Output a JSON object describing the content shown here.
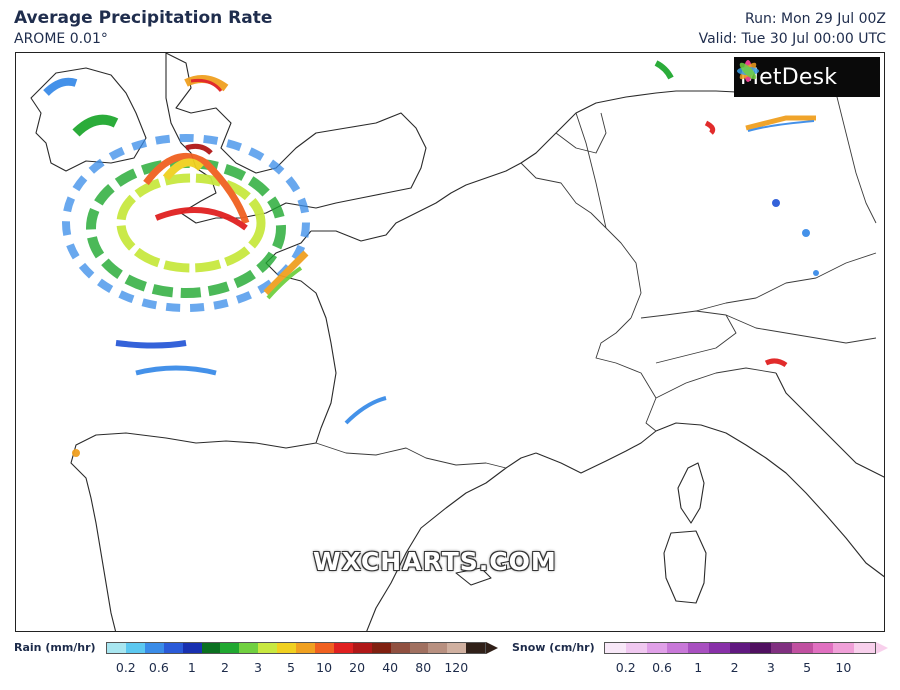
{
  "header": {
    "title": "Average Precipitation Rate",
    "model": "AROME 0.01°",
    "run": "Run: Mon 29 Jul 00Z",
    "valid": "Valid: Tue 30 Jul 00:00 UTC"
  },
  "logo": {
    "text": "MetDesk",
    "icon": "metdesk-flower-icon"
  },
  "watermark": "WXCHARTS.COM",
  "legend": {
    "rain": {
      "label": "Rain (mm/hr)",
      "ticks": [
        "0.2",
        "0.6",
        "1",
        "2",
        "3",
        "5",
        "10",
        "20",
        "40",
        "80",
        "120"
      ],
      "colors": [
        "#a8e6f0",
        "#5cc8f0",
        "#3a8ce8",
        "#2a5ad8",
        "#1830b0",
        "#0a7020",
        "#20a830",
        "#70d040",
        "#c8e840",
        "#f0d020",
        "#f0a020",
        "#f06020",
        "#e02020",
        "#b01818",
        "#802010",
        "#905040",
        "#a07060",
        "#b89080",
        "#d0b0a0",
        "#302018"
      ]
    },
    "snow": {
      "label": "Snow (cm/hr)",
      "ticks": [
        "0.2",
        "0.6",
        "1",
        "2",
        "3",
        "5",
        "10"
      ],
      "colors": [
        "#f8e8f8",
        "#f0c8f0",
        "#e0a0e8",
        "#c878d8",
        "#a850c0",
        "#8830a8",
        "#601880",
        "#501060",
        "#803080",
        "#c050a0",
        "#e070c0",
        "#f0a0d8",
        "#f8d0ec"
      ]
    }
  }
}
